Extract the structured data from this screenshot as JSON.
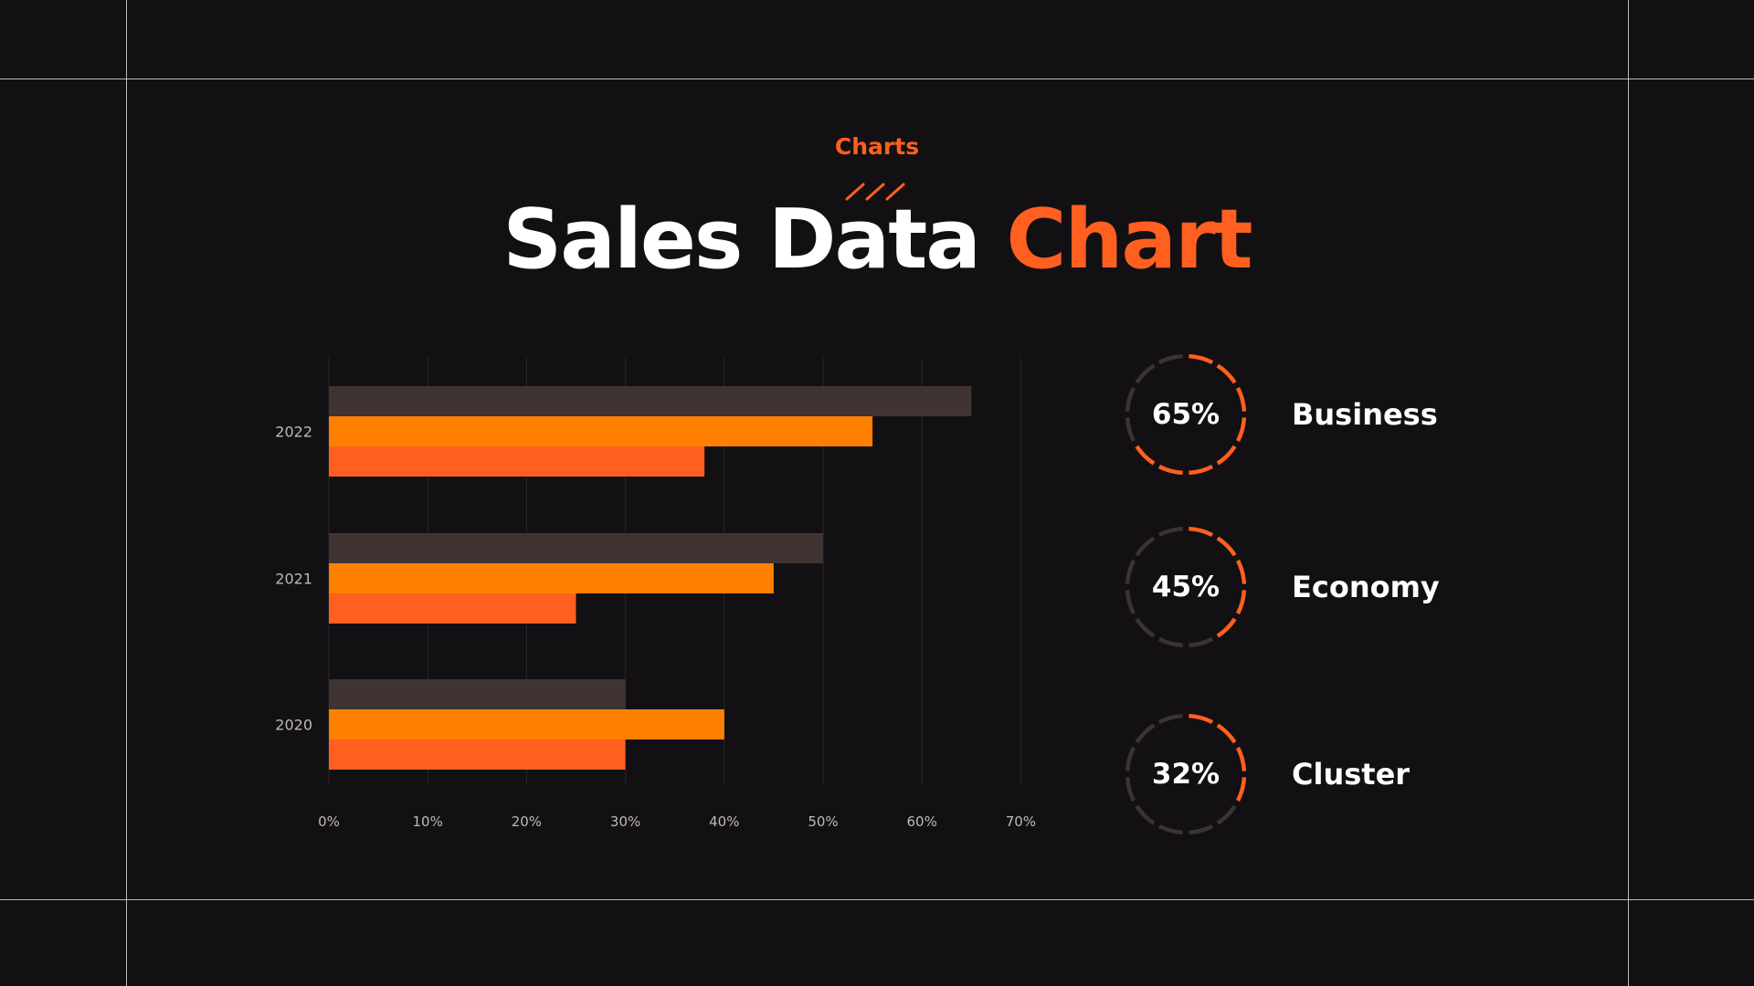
{
  "header": {
    "eyebrow": "Charts",
    "title_main": "Sales Data",
    "title_accent": "Chart"
  },
  "colors": {
    "background": "#121013",
    "accent": "#ff5f1f",
    "series_gray": "#3f3431",
    "series_orange": "#ff8000",
    "series_red": "#ff5f1f",
    "ring_track": "#3a3431",
    "grid": "#2a272b",
    "tick_text": "#bdb8bc"
  },
  "chart_data": {
    "type": "bar",
    "orientation": "horizontal",
    "categories": [
      "2022",
      "2021",
      "2020"
    ],
    "series": [
      {
        "values": [
          65,
          50,
          30
        ],
        "color": "#3f3431"
      },
      {
        "values": [
          55,
          45,
          40
        ],
        "color": "#ff8000"
      },
      {
        "values": [
          38,
          25,
          30
        ],
        "color": "#ff5f1f"
      }
    ],
    "xlim": [
      0,
      70
    ],
    "xticks": [
      "0%",
      "10%",
      "20%",
      "30%",
      "40%",
      "50%",
      "60%",
      "70%"
    ],
    "grid": true,
    "legend": "none"
  },
  "kpis": [
    {
      "value": "65%",
      "label": "Business",
      "percent": 65,
      "icon": "segmented-ring-icon"
    },
    {
      "value": "45%",
      "label": "Economy",
      "percent": 45,
      "icon": "segmented-ring-icon"
    },
    {
      "value": "32%",
      "label": "Cluster",
      "percent": 32,
      "icon": "segmented-ring-icon"
    }
  ]
}
